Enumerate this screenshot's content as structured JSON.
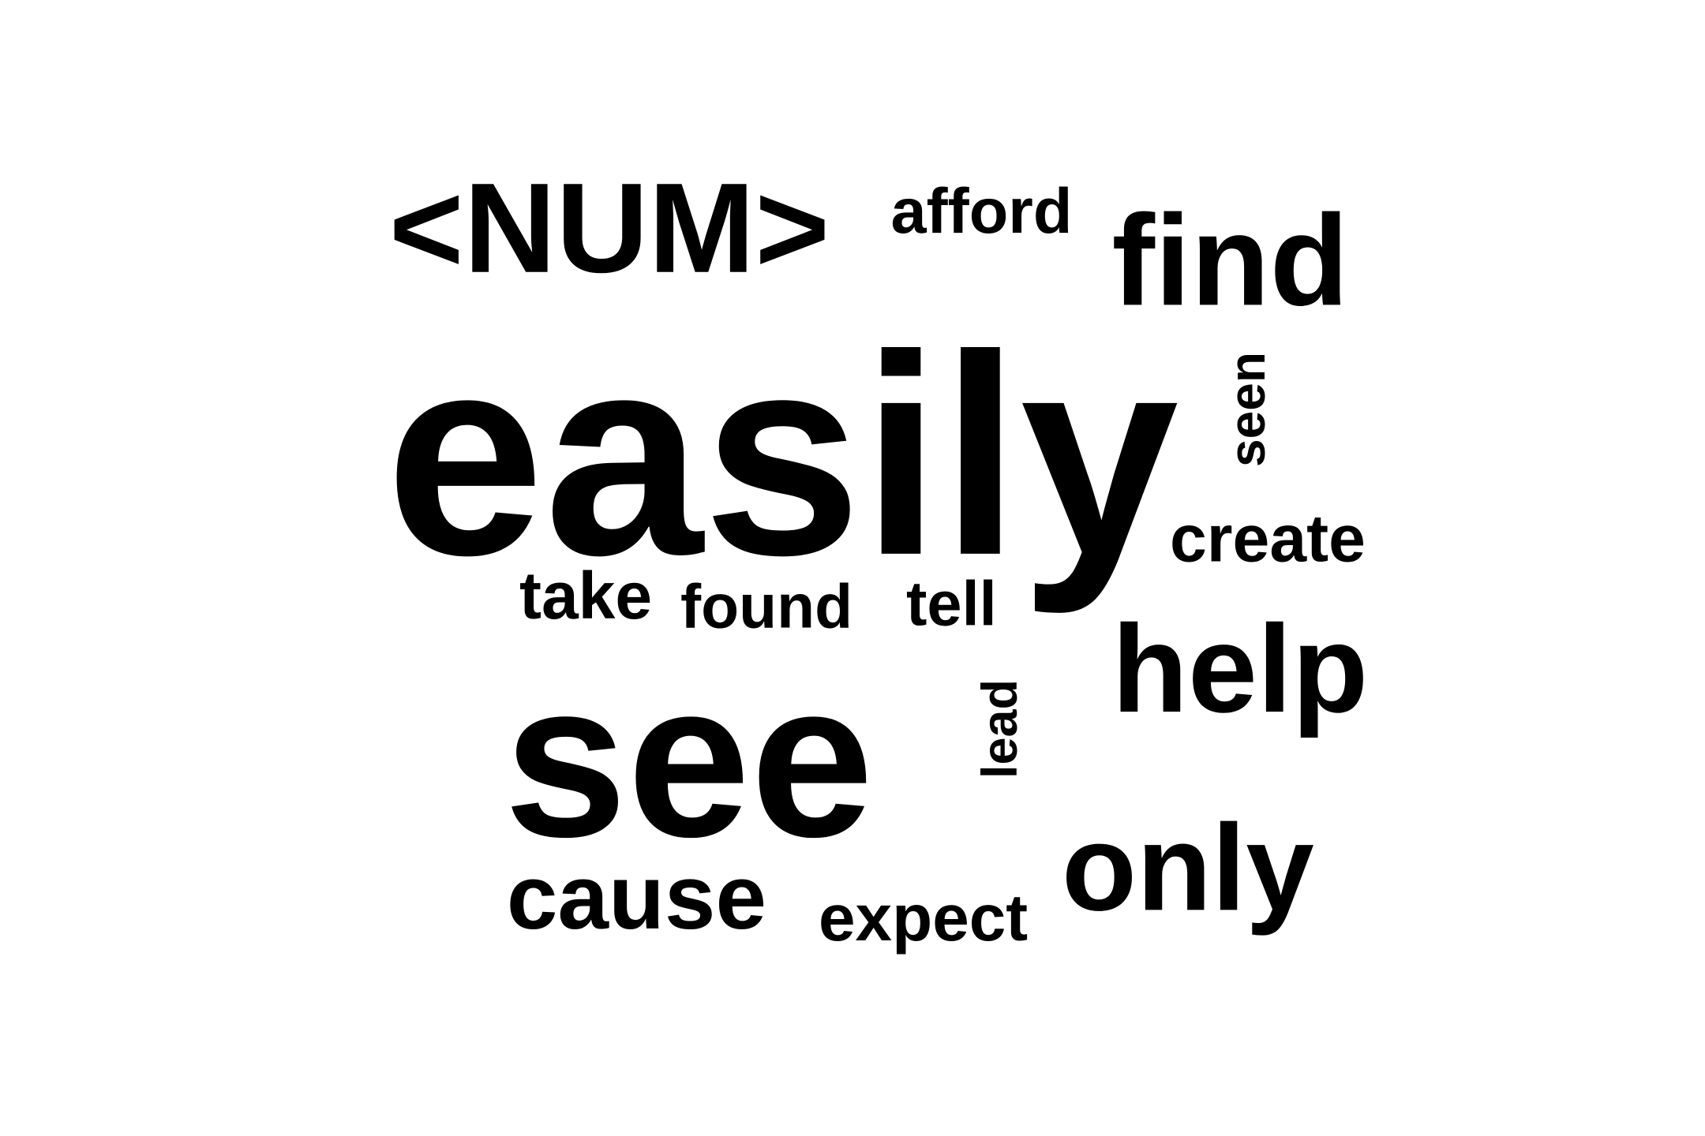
{
  "word_cloud": {
    "words": [
      {
        "key": "easily",
        "text": "easily"
      },
      {
        "key": "see",
        "text": "see"
      },
      {
        "key": "num",
        "text": "<NUM>"
      },
      {
        "key": "find",
        "text": "find"
      },
      {
        "key": "help",
        "text": "help"
      },
      {
        "key": "only",
        "text": "only"
      },
      {
        "key": "cause",
        "text": "cause"
      },
      {
        "key": "afford",
        "text": "afford"
      },
      {
        "key": "seen",
        "text": "seen"
      },
      {
        "key": "create",
        "text": "create"
      },
      {
        "key": "take",
        "text": "take"
      },
      {
        "key": "found",
        "text": "found"
      },
      {
        "key": "tell",
        "text": "tell"
      },
      {
        "key": "lead",
        "text": "lead"
      },
      {
        "key": "expect",
        "text": "expect"
      }
    ]
  }
}
